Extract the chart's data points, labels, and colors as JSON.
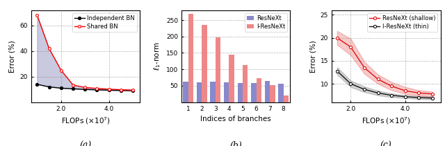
{
  "fig_width": 6.4,
  "fig_height": 2.11,
  "dpi": 100,
  "panel_a": {
    "xlabel": "FLOPs ($\\times10^7$)",
    "ylabel": "Error (%)",
    "xlim": [
      7500000.0,
      53000000.0
    ],
    "ylim": [
      0,
      72
    ],
    "yticks": [
      20,
      40,
      60
    ],
    "xticks": [
      20000000.0,
      40000000.0
    ],
    "xticklabels": [
      "2.0",
      "4.0"
    ],
    "independent_x": [
      10000000.0,
      15000000.0,
      20000000.0,
      25000000.0,
      30000000.0,
      35000000.0,
      40000000.0,
      45000000.0,
      50000000.0
    ],
    "independent_y": [
      14.0,
      12.0,
      11.0,
      10.5,
      10.0,
      9.7,
      9.4,
      9.2,
      9.0
    ],
    "shared_x": [
      10000000.0,
      15000000.0,
      20000000.0,
      25000000.0,
      30000000.0,
      35000000.0,
      40000000.0,
      45000000.0,
      50000000.0
    ],
    "shared_y": [
      68.0,
      42.0,
      25.0,
      13.5,
      11.5,
      10.8,
      10.2,
      9.8,
      9.5
    ],
    "fill_color": "#8888bb",
    "fill_alpha": 0.45,
    "label": "(a)"
  },
  "panel_b": {
    "xlabel": "Indices of branches",
    "ylabel": "$\\ell_1$-norm",
    "ylim": [
      0,
      280
    ],
    "yticks": [
      50,
      100,
      150,
      200,
      250
    ],
    "resnext_vals": [
      62,
      60,
      63,
      60,
      58,
      58,
      65,
      57
    ],
    "i_resnext_vals": [
      268,
      236,
      197,
      144,
      113,
      74,
      52,
      20
    ],
    "resnext_color": "#8888cc",
    "i_resnext_color": "#ee8888",
    "label": "(b)"
  },
  "panel_c": {
    "xlabel": "FLOPs ($\\times10^7$)",
    "ylabel": "Error (%)",
    "xlim": [
      13000000.0,
      53000000.0
    ],
    "ylim": [
      6,
      26
    ],
    "yticks": [
      10,
      15,
      20,
      25
    ],
    "xticks": [
      20000000.0,
      40000000.0
    ],
    "xticklabels": [
      "2.0",
      "4.0"
    ],
    "shallow_x": [
      15000000.0,
      20000000.0,
      25000000.0,
      30000000.0,
      35000000.0,
      40000000.0,
      45000000.0,
      50000000.0
    ],
    "shallow_y": [
      20.0,
      18.0,
      13.5,
      11.0,
      9.5,
      8.5,
      8.0,
      7.8
    ],
    "shallow_y_lo": [
      18.5,
      16.2,
      12.2,
      10.0,
      8.6,
      7.8,
      7.4,
      7.2
    ],
    "shallow_y_hi": [
      21.5,
      19.8,
      14.8,
      12.0,
      10.4,
      9.3,
      8.6,
      8.3
    ],
    "thin_x": [
      15000000.0,
      20000000.0,
      25000000.0,
      30000000.0,
      35000000.0,
      40000000.0,
      45000000.0,
      50000000.0
    ],
    "thin_y": [
      12.8,
      10.0,
      8.8,
      8.0,
      7.5,
      7.2,
      7.0,
      6.9
    ],
    "thin_y_lo": [
      12.0,
      9.3,
      8.2,
      7.5,
      7.1,
      6.9,
      6.7,
      6.6
    ],
    "thin_y_hi": [
      13.6,
      10.7,
      9.4,
      8.5,
      7.9,
      7.5,
      7.3,
      7.2
    ],
    "shallow_color": "#dd1111",
    "thin_color": "#111111",
    "label": "(c)"
  }
}
